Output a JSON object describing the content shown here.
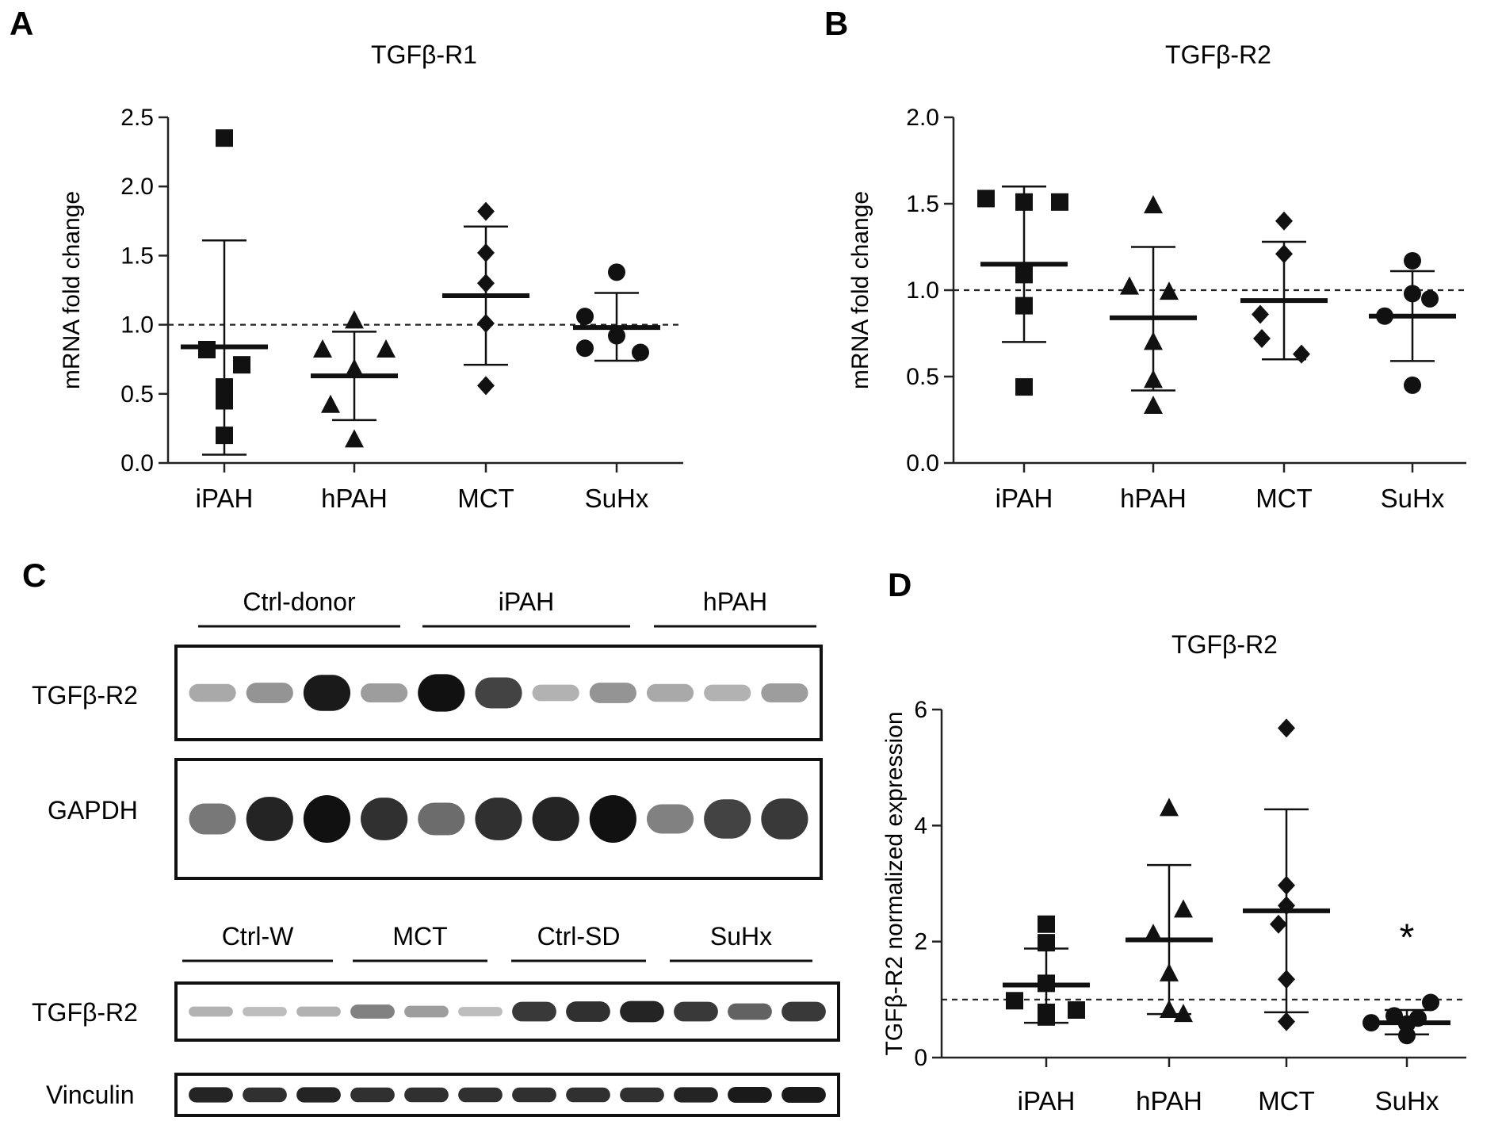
{
  "panels": {
    "A": {
      "letter": "A"
    },
    "B": {
      "letter": "B"
    },
    "C": {
      "letter": "C"
    },
    "D": {
      "letter": "D"
    }
  },
  "chart_data": [
    {
      "id": "A",
      "type": "scatter",
      "title": "TGFβ-R1",
      "ylabel": "mRNA fold change",
      "xlabel": "",
      "categories": [
        "iPAH",
        "hPAH",
        "MCT",
        "SuHx"
      ],
      "markers": [
        "square",
        "triangle",
        "diamond",
        "circle"
      ],
      "ylim": [
        0,
        2.5
      ],
      "yticks": [
        0.0,
        0.5,
        1.0,
        1.5,
        2.0,
        2.5
      ],
      "ytick_labels": [
        "0.0",
        "0.5",
        "1.0",
        "1.5",
        "2.0",
        "2.5"
      ],
      "reference_line": 1.0,
      "series": [
        {
          "name": "iPAH",
          "points": [
            2.35,
            0.82,
            0.71,
            0.55,
            0.45,
            0.2
          ],
          "mean": 0.84,
          "err_low": 0.06,
          "err_high": 1.61
        },
        {
          "name": "hPAH",
          "points": [
            1.03,
            0.82,
            0.82,
            0.68,
            0.42,
            0.17
          ],
          "mean": 0.63,
          "err_low": 0.31,
          "err_high": 0.95
        },
        {
          "name": "MCT",
          "points": [
            1.82,
            1.52,
            1.3,
            1.01,
            0.56
          ],
          "mean": 1.21,
          "err_low": 0.71,
          "err_high": 1.71
        },
        {
          "name": "SuHx",
          "points": [
            1.38,
            1.06,
            0.92,
            0.83,
            0.8
          ],
          "mean": 0.98,
          "err_low": 0.74,
          "err_high": 1.23
        }
      ]
    },
    {
      "id": "B",
      "type": "scatter",
      "title": "TGFβ-R2",
      "ylabel": "mRNA fold change",
      "xlabel": "",
      "categories": [
        "iPAH",
        "hPAH",
        "MCT",
        "SuHx"
      ],
      "markers": [
        "square",
        "triangle",
        "diamond",
        "circle"
      ],
      "ylim": [
        0,
        2.0
      ],
      "yticks": [
        0.0,
        0.5,
        1.0,
        1.5,
        2.0
      ],
      "ytick_labels": [
        "0.0",
        "0.5",
        "1.0",
        "1.5",
        "2.0"
      ],
      "reference_line": 1.0,
      "series": [
        {
          "name": "iPAH",
          "points": [
            1.53,
            1.51,
            1.51,
            1.09,
            0.91,
            0.44
          ],
          "mean": 1.15,
          "err_low": 0.7,
          "err_high": 1.6
        },
        {
          "name": "hPAH",
          "points": [
            1.49,
            1.02,
            0.99,
            0.7,
            0.48,
            0.33
          ],
          "mean": 0.84,
          "err_low": 0.42,
          "err_high": 1.25
        },
        {
          "name": "MCT",
          "points": [
            1.4,
            1.21,
            0.86,
            0.72,
            0.63
          ],
          "mean": 0.94,
          "err_low": 0.6,
          "err_high": 1.28
        },
        {
          "name": "SuHx",
          "points": [
            1.17,
            0.98,
            0.95,
            0.85,
            0.45
          ],
          "mean": 0.85,
          "err_low": 0.59,
          "err_high": 1.11
        }
      ]
    },
    {
      "id": "D",
      "type": "scatter",
      "title": "TGFβ-R2",
      "ylabel": "TGFβ-R2 normalized expression",
      "xlabel": "",
      "categories": [
        "iPAH",
        "hPAH",
        "MCT",
        "SuHx"
      ],
      "markers": [
        "square",
        "triangle",
        "diamond",
        "circle"
      ],
      "ylim": [
        0,
        6
      ],
      "yticks": [
        0,
        2,
        4,
        6
      ],
      "ytick_labels": [
        "0",
        "2",
        "4",
        "6"
      ],
      "reference_line": 1.0,
      "annotations": [
        {
          "category": "SuHx",
          "text": "*"
        }
      ],
      "series": [
        {
          "name": "iPAH",
          "points": [
            2.3,
            1.98,
            1.28,
            0.98,
            0.82,
            0.78,
            0.7
          ],
          "mean": 1.25,
          "err_low": 0.6,
          "err_high": 1.88
        },
        {
          "name": "hPAH",
          "points": [
            4.3,
            2.55,
            2.13,
            1.45,
            0.82,
            0.75
          ],
          "mean": 2.03,
          "err_low": 0.75,
          "err_high": 3.32
        },
        {
          "name": "MCT",
          "points": [
            5.68,
            2.97,
            2.62,
            2.3,
            1.35,
            0.62
          ],
          "mean": 2.53,
          "err_low": 0.78,
          "err_high": 4.28
        },
        {
          "name": "SuHx",
          "points": [
            0.95,
            0.72,
            0.68,
            0.6,
            0.58,
            0.38
          ],
          "mean": 0.6,
          "err_low": 0.4,
          "err_high": 0.82
        }
      ]
    }
  ],
  "blots": {
    "top": {
      "groups": [
        "Ctrl-donor",
        "iPAH",
        "hPAH"
      ],
      "rows": [
        {
          "label": "TGFβ-R2",
          "intensities": [
            0.25,
            0.35,
            0.95,
            0.3,
            1.0,
            0.75,
            0.2,
            0.35,
            0.25,
            0.2,
            0.3
          ]
        },
        {
          "label": "GAPDH",
          "intensities": [
            0.5,
            0.9,
            1.0,
            0.85,
            0.55,
            0.85,
            0.9,
            1.0,
            0.45,
            0.75,
            0.8
          ]
        }
      ]
    },
    "bottom": {
      "groups": [
        "Ctrl-W",
        "MCT",
        "Ctrl-SD",
        "SuHx"
      ],
      "rows": [
        {
          "label": "TGFβ-R2",
          "intensities": [
            0.2,
            0.15,
            0.2,
            0.45,
            0.3,
            0.15,
            0.8,
            0.85,
            0.9,
            0.8,
            0.6,
            0.8
          ]
        },
        {
          "label": "Vinculin",
          "intensities": [
            0.9,
            0.85,
            0.9,
            0.85,
            0.85,
            0.85,
            0.85,
            0.85,
            0.85,
            0.9,
            0.95,
            0.95
          ]
        }
      ]
    }
  }
}
